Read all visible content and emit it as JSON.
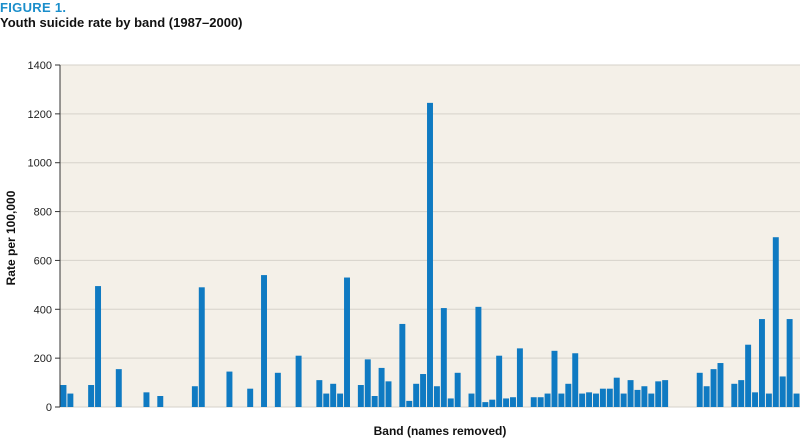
{
  "figure_label": "FIGURE 1.",
  "title": "Youth suicide rate by band (1987–2000)",
  "colors": {
    "accent": "#1a8ecb",
    "bar": "#0f7ac2",
    "plot_bg": "#f4f0e8",
    "grid": "#d6d2ca"
  },
  "chart_data": {
    "type": "bar",
    "title": "Youth suicide rate by band (1987–2000)",
    "xlabel": "Band (names removed)",
    "ylabel": "Rate per 100,000",
    "ylim": [
      0,
      1400
    ],
    "yticks": [
      0,
      200,
      400,
      600,
      800,
      1000,
      1200,
      1400
    ],
    "grid": true,
    "values": [
      90,
      55,
      0,
      0,
      90,
      495,
      0,
      0,
      155,
      0,
      0,
      0,
      60,
      0,
      45,
      0,
      0,
      0,
      0,
      85,
      490,
      0,
      0,
      0,
      145,
      0,
      0,
      75,
      0,
      540,
      0,
      140,
      0,
      0,
      210,
      0,
      0,
      110,
      55,
      95,
      55,
      530,
      0,
      90,
      195,
      45,
      160,
      105,
      0,
      340,
      25,
      95,
      135,
      1245,
      85,
      405,
      35,
      140,
      0,
      55,
      410,
      20,
      30,
      210,
      35,
      40,
      240,
      0,
      40,
      40,
      55,
      230,
      55,
      95,
      220,
      55,
      60,
      55,
      75,
      75,
      120,
      55,
      110,
      70,
      85,
      55,
      105,
      110,
      0,
      0,
      0,
      0,
      140,
      85,
      155,
      180,
      0,
      95,
      110,
      255,
      60,
      360,
      55,
      695,
      125,
      360,
      55
    ]
  }
}
